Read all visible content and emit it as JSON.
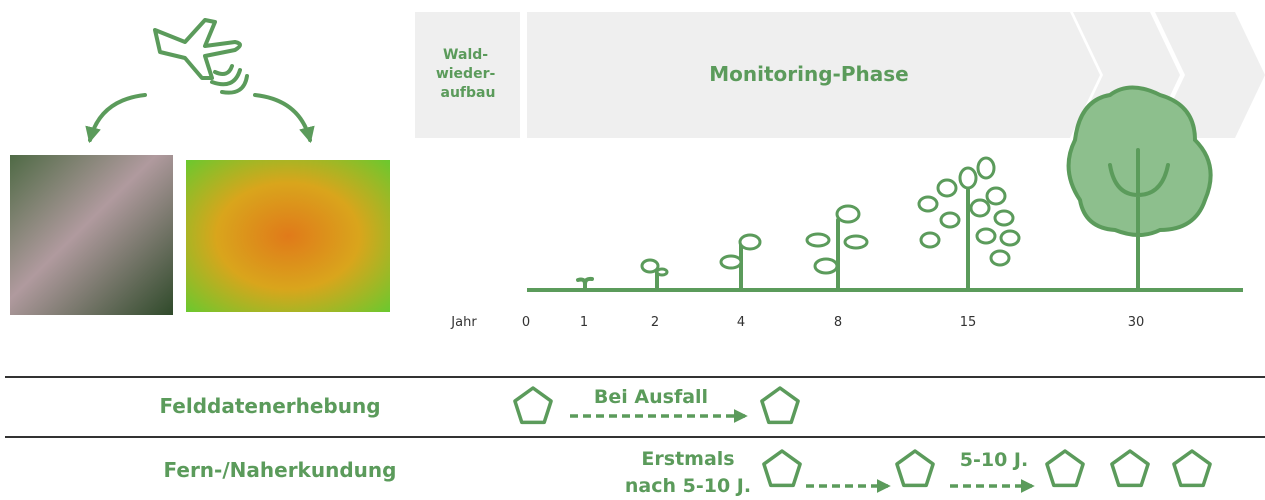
{
  "banner": {
    "phase_before": [
      "Wald-",
      "wieder-",
      "aufbau"
    ],
    "phase_main": "Monitoring-Phase"
  },
  "timeline": {
    "label": "Jahr",
    "years": [
      "0",
      "1",
      "2",
      "4",
      "8",
      "15",
      "30"
    ]
  },
  "rows": [
    {
      "label": "Felddatenerhebung",
      "notes": [
        "Bei Ausfall"
      ]
    },
    {
      "label": "Fern-/Naherkundung",
      "notes": [
        "Erstmals",
        "nach 5-10 J.",
        "5-10 J."
      ]
    }
  ]
}
